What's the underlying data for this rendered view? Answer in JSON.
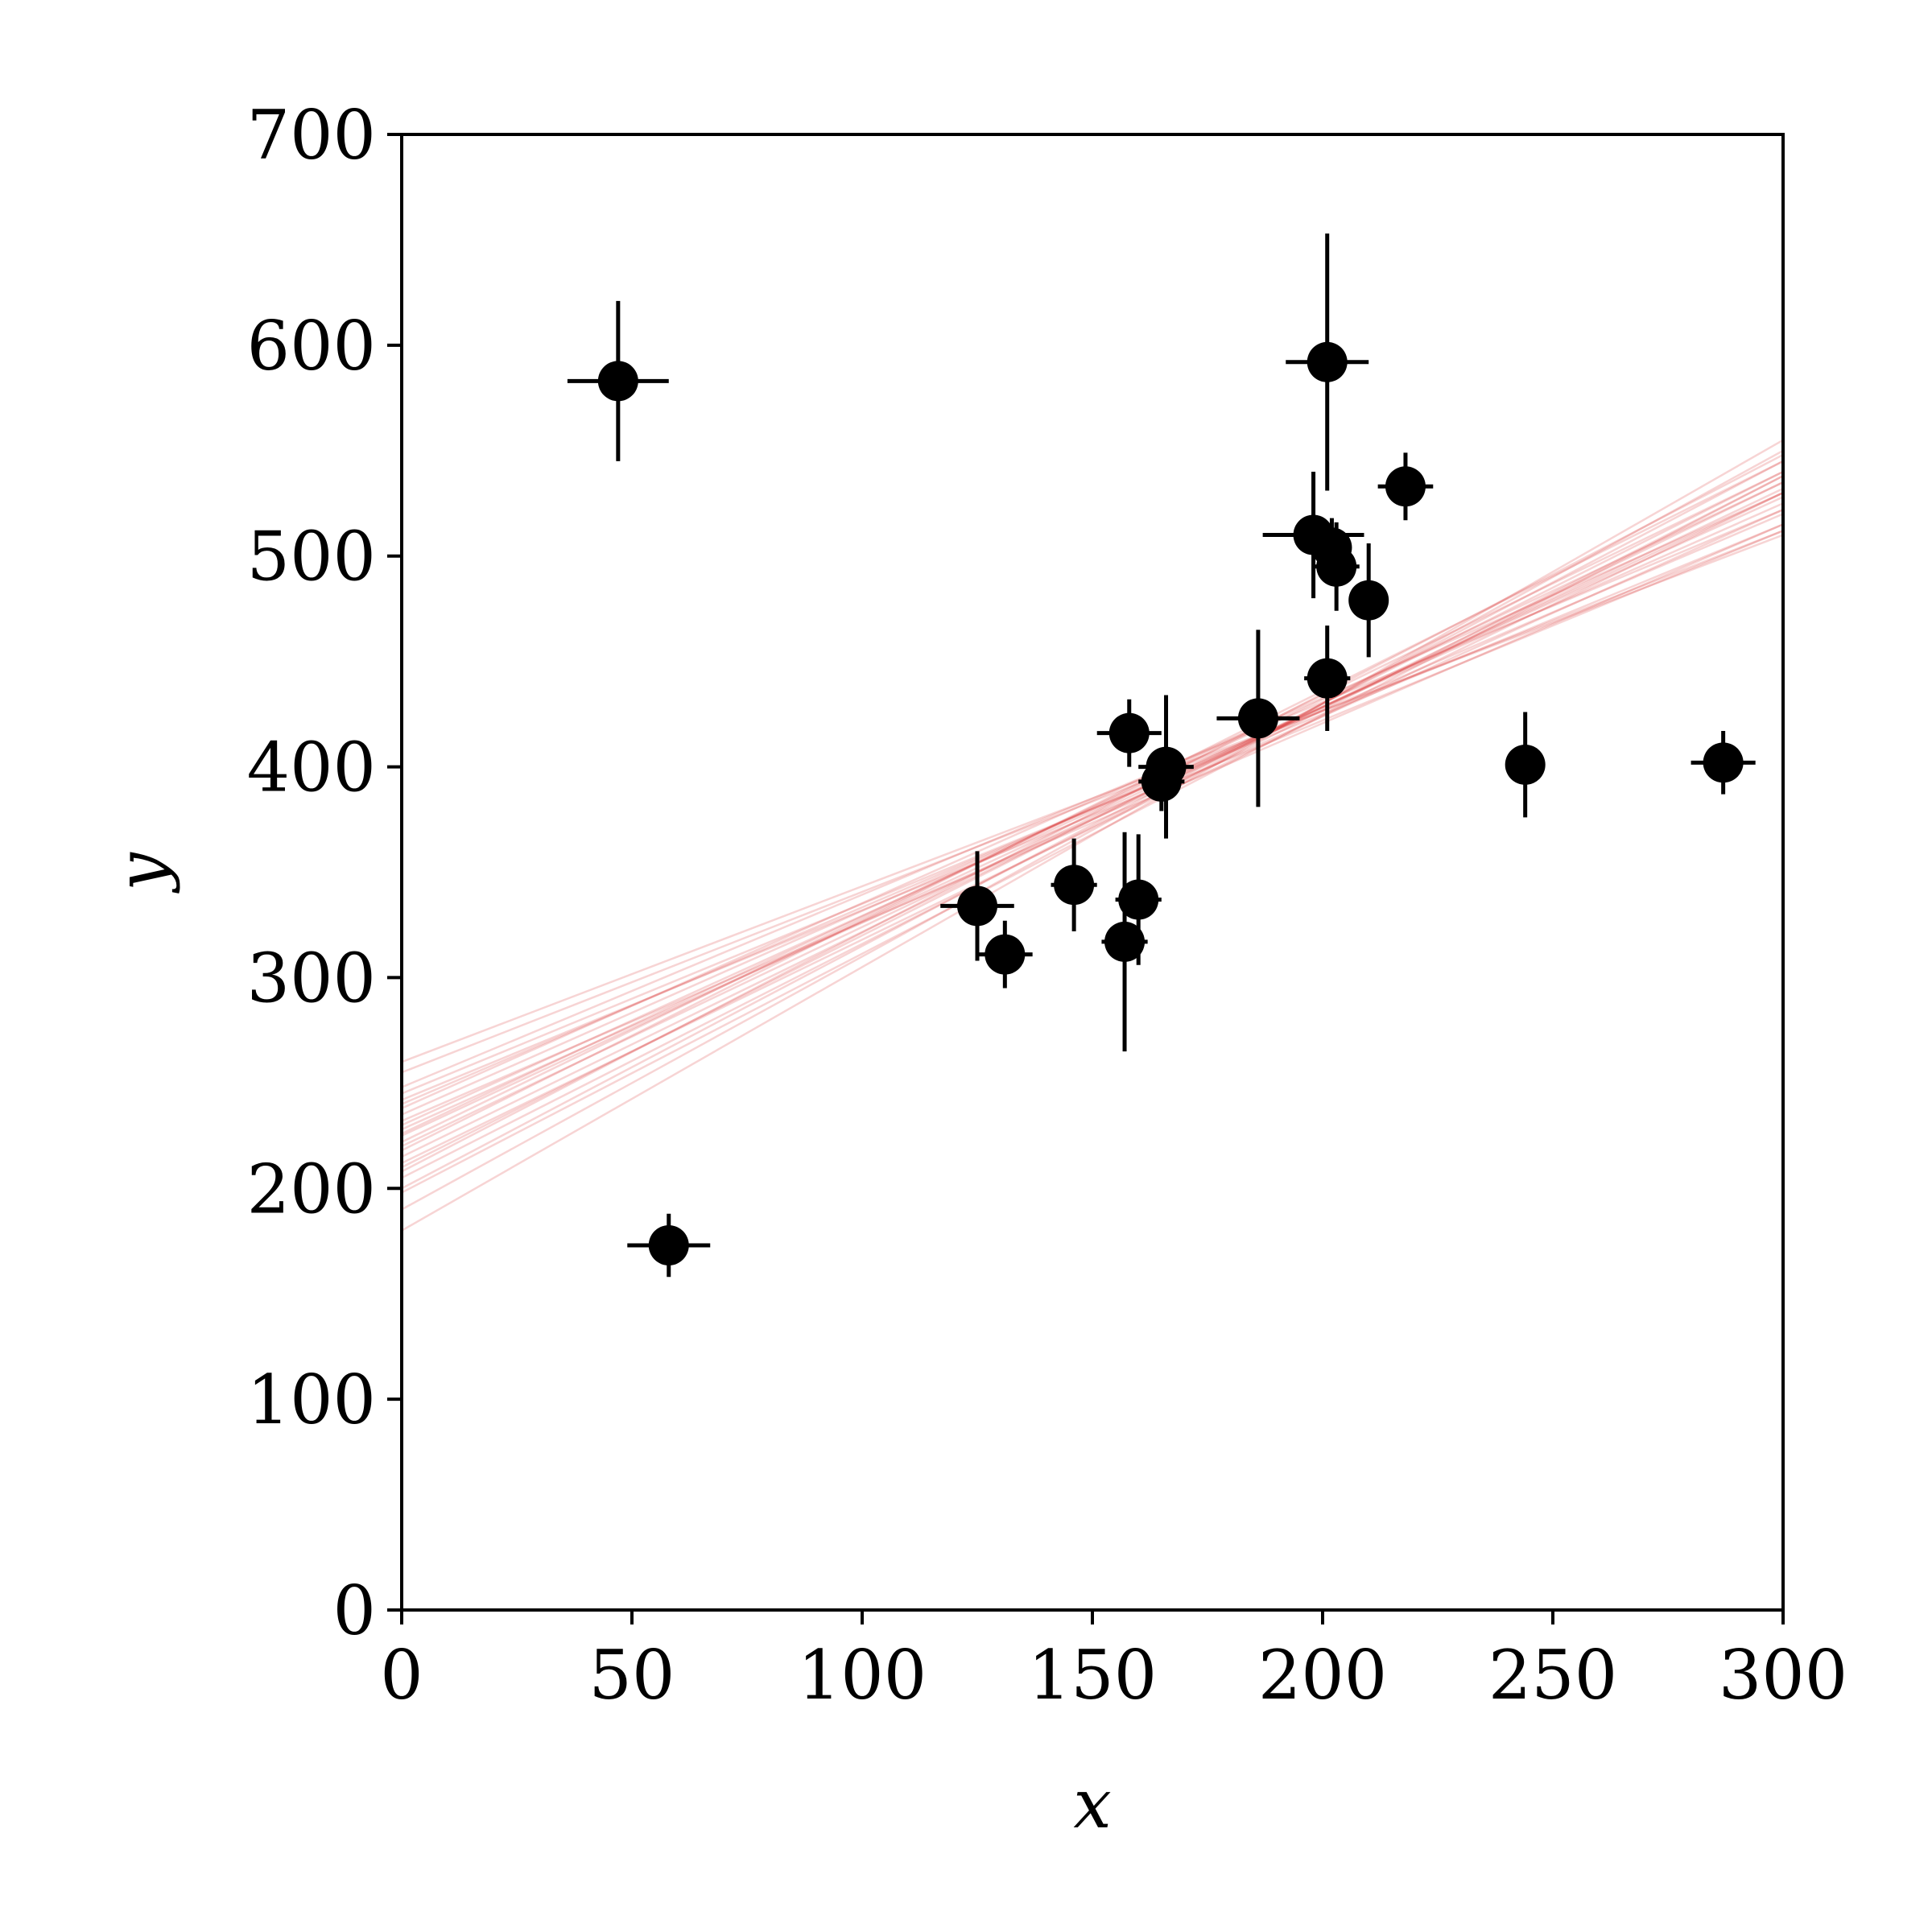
{
  "chart_data": {
    "type": "scatter",
    "xlabel": "x",
    "ylabel": "y",
    "x": [
      201,
      244,
      47,
      287,
      203,
      58,
      210,
      202,
      198,
      158,
      165,
      201,
      157,
      131,
      166,
      160,
      186,
      125,
      218,
      146
    ],
    "values": [
      592,
      401,
      583,
      402,
      495,
      173,
      479,
      504,
      510,
      416,
      393,
      442,
      317,
      311,
      400,
      337,
      423,
      334,
      533,
      344
    ],
    "yerr": [
      61,
      25,
      38,
      15,
      21,
      15,
      27,
      14,
      30,
      16,
      14,
      25,
      52,
      16,
      34,
      31,
      42,
      26,
      16,
      22
    ],
    "xerr": [
      9,
      4,
      11,
      7,
      5,
      9,
      4,
      4,
      11,
      7,
      5,
      5,
      5,
      6,
      6,
      5,
      9,
      8,
      6,
      5
    ],
    "color": "#000000",
    "fit_color": "#d62728",
    "fit_x": [
      0,
      300
    ],
    "fit_lines": [
      [
        225,
        530
      ],
      [
        215,
        535
      ],
      [
        235,
        525
      ],
      [
        200,
        545
      ],
      [
        245,
        515
      ],
      [
        210,
        540
      ],
      [
        230,
        528
      ],
      [
        220,
        532
      ],
      [
        190,
        550
      ],
      [
        255,
        512
      ],
      [
        228,
        522
      ],
      [
        205,
        538
      ],
      [
        240,
        520
      ],
      [
        218,
        545
      ],
      [
        232,
        515
      ],
      [
        180,
        555
      ],
      [
        260,
        510
      ],
      [
        212,
        530
      ],
      [
        222,
        540
      ],
      [
        238,
        530
      ],
      [
        198,
        538
      ],
      [
        248,
        522
      ],
      [
        226,
        535
      ],
      [
        208,
        548
      ],
      [
        242,
        512
      ]
    ],
    "xlim": [
      0,
      300
    ],
    "ylim": [
      0,
      700
    ],
    "xticks": [
      0,
      50,
      100,
      150,
      200,
      250,
      300
    ],
    "yticks": [
      0,
      100,
      200,
      300,
      400,
      500,
      600,
      700
    ]
  }
}
